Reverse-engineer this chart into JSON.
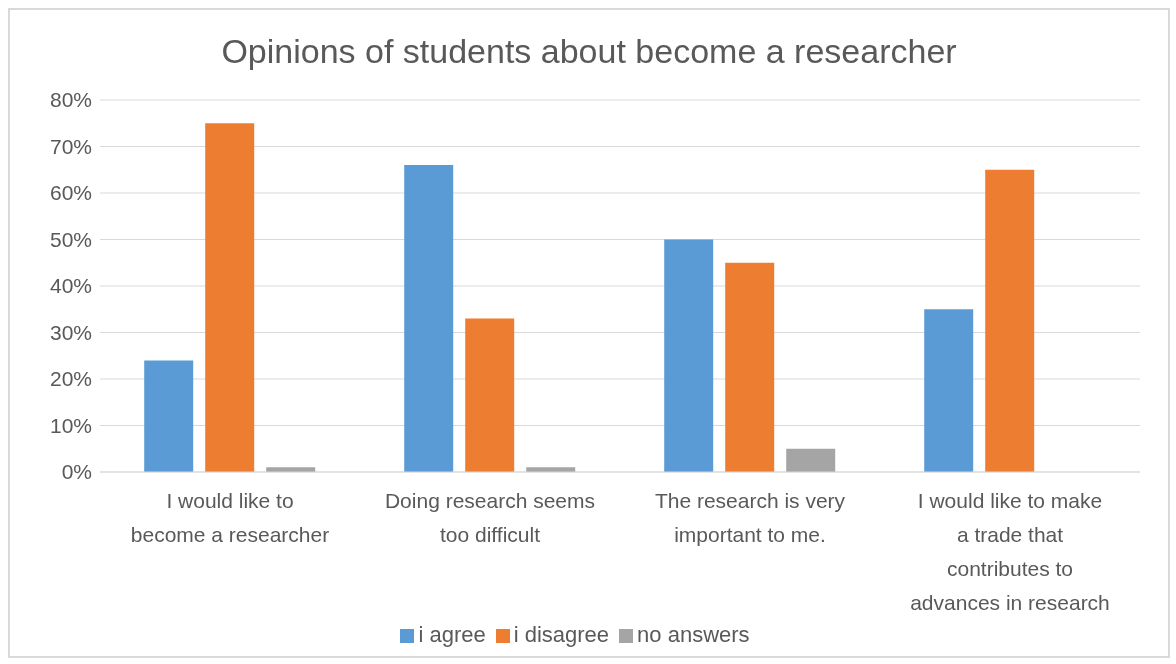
{
  "chart_data": {
    "type": "bar",
    "title": "Opinions of students about become a researcher",
    "categories": [
      "I would like to become a researcher",
      "Doing research seems too difficult",
      "The research is very important to me.",
      "I would like to make a trade that contributes to advances in research"
    ],
    "series": [
      {
        "name": "i agree",
        "color": "#5b9bd5",
        "values": [
          24,
          66,
          50,
          35
        ]
      },
      {
        "name": "i disagree",
        "color": "#ed7d31",
        "values": [
          75,
          33,
          45,
          65
        ]
      },
      {
        "name": "no answers",
        "color": "#a5a5a5",
        "values": [
          1,
          1,
          5,
          0
        ]
      }
    ],
    "ylim": [
      0,
      80
    ],
    "yticks": [
      {
        "value": 0,
        "label": "0%"
      },
      {
        "value": 10,
        "label": "10%"
      },
      {
        "value": 20,
        "label": "20%"
      },
      {
        "value": 30,
        "label": "30%"
      },
      {
        "value": 40,
        "label": "40%"
      },
      {
        "value": 50,
        "label": "50%"
      },
      {
        "value": 60,
        "label": "60%"
      },
      {
        "value": 70,
        "label": "70%"
      },
      {
        "value": 80,
        "label": "80%"
      }
    ],
    "grid": "y",
    "legend": "bottom"
  }
}
